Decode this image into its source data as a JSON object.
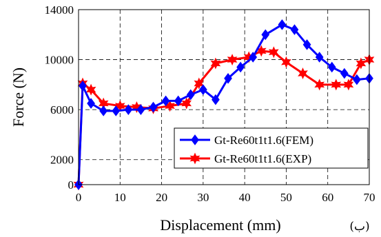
{
  "chart_data": {
    "type": "line",
    "xlabel": "Displacement (mm)",
    "ylabel": "Force (N)",
    "xlim": [
      0,
      70
    ],
    "ylim": [
      0,
      14000
    ],
    "x_ticks": [
      0,
      10,
      20,
      30,
      40,
      50,
      60,
      70
    ],
    "y_ticks": [
      0,
      2000,
      6000,
      10000,
      14000
    ],
    "grid": true,
    "legend_position": "lower-right",
    "panel_tag": "(ب)",
    "series": [
      {
        "name": "Gt-Re60t1t1.6(FEM)",
        "color": "#0000ff",
        "marker": "diamond",
        "x": [
          0,
          1,
          3,
          6,
          9,
          12,
          15,
          18,
          21,
          24,
          27,
          30,
          33,
          36,
          39,
          42,
          45,
          49,
          52,
          55,
          58,
          61,
          64,
          67,
          70
        ],
        "y": [
          0,
          7900,
          6500,
          5900,
          5900,
          6000,
          6000,
          6200,
          6700,
          6700,
          7200,
          7600,
          6800,
          8500,
          9400,
          10200,
          12000,
          12800,
          12400,
          11200,
          10200,
          9400,
          8900,
          8400,
          8500
        ]
      },
      {
        "name": "Gt-Re60t1t1.6(EXP)",
        "color": "#ff0000",
        "marker": "star",
        "x": [
          0,
          1,
          3,
          6,
          10,
          14,
          18,
          22,
          26,
          29,
          33,
          37,
          41,
          44,
          47,
          50,
          54,
          58,
          62,
          65,
          68,
          70
        ],
        "y": [
          0,
          8100,
          7600,
          6500,
          6300,
          6200,
          6100,
          6300,
          6500,
          8100,
          9700,
          10000,
          10200,
          10700,
          10600,
          9800,
          8900,
          8000,
          8000,
          8000,
          9700,
          10000
        ]
      }
    ]
  }
}
